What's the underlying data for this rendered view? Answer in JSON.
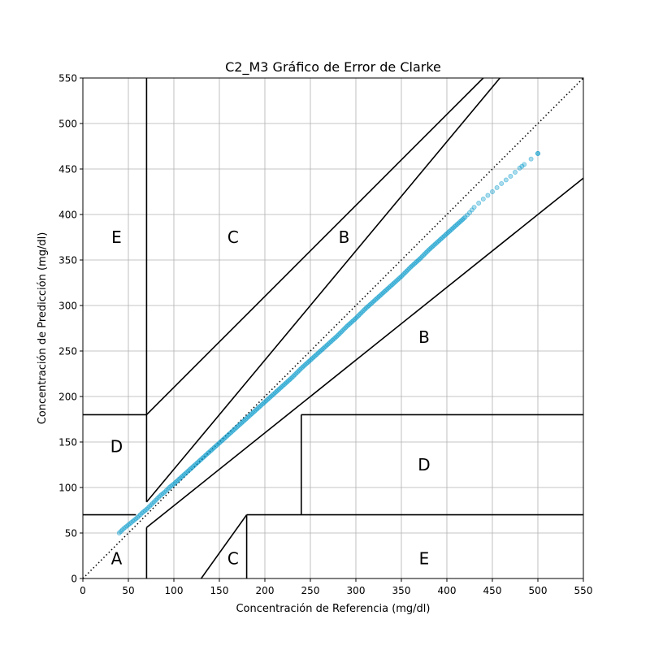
{
  "chart_data": {
    "type": "scatter",
    "title": "C2_M3 Gráfico de Error de Clarke",
    "xlabel": "Concentración de Referencia (mg/dl)",
    "ylabel": "Concentración de Predicción (mg/dl)",
    "xlim": [
      0,
      550
    ],
    "ylim": [
      0,
      550
    ],
    "xticks": [
      0,
      50,
      100,
      150,
      200,
      250,
      300,
      350,
      400,
      450,
      500,
      550
    ],
    "yticks": [
      0,
      50,
      100,
      150,
      200,
      250,
      300,
      350,
      400,
      450,
      500,
      550
    ],
    "grid": true,
    "point_color": "#0b9ccc",
    "reference_line": {
      "style": "dotted",
      "from": [
        0,
        0
      ],
      "to": [
        550,
        550
      ]
    },
    "zone_lines": [
      [
        [
          70,
          0
        ],
        [
          70,
          56
        ]
      ],
      [
        [
          70,
          56
        ],
        [
          550,
          440
        ]
      ],
      [
        [
          70,
          84
        ],
        [
          458.3,
          550
        ]
      ],
      [
        [
          70,
          84
        ],
        [
          70,
          550
        ]
      ],
      [
        [
          70,
          180
        ],
        [
          440,
          550
        ]
      ],
      [
        [
          0,
          70
        ],
        [
          58.3,
          70
        ]
      ],
      [
        [
          0,
          180
        ],
        [
          70,
          180
        ]
      ],
      [
        [
          130,
          0
        ],
        [
          180,
          70
        ]
      ],
      [
        [
          180,
          0
        ],
        [
          180,
          70
        ]
      ],
      [
        [
          180,
          70
        ],
        [
          550,
          70
        ]
      ],
      [
        [
          240,
          70
        ],
        [
          240,
          180
        ]
      ],
      [
        [
          240,
          180
        ],
        [
          550,
          180
        ]
      ]
    ],
    "zone_labels": [
      {
        "text": "A",
        "x": 37,
        "y": 22
      },
      {
        "text": "B",
        "x": 375,
        "y": 265
      },
      {
        "text": "B",
        "x": 287,
        "y": 375
      },
      {
        "text": "C",
        "x": 165,
        "y": 375
      },
      {
        "text": "C",
        "x": 165,
        "y": 22
      },
      {
        "text": "D",
        "x": 37,
        "y": 145
      },
      {
        "text": "D",
        "x": 375,
        "y": 125
      },
      {
        "text": "E",
        "x": 37,
        "y": 375
      },
      {
        "text": "E",
        "x": 375,
        "y": 22
      }
    ],
    "series": [
      {
        "x": [
          40,
          45,
          50,
          55,
          60,
          65,
          70,
          75,
          80,
          85,
          90,
          95,
          100,
          110,
          120,
          130,
          140,
          150,
          160,
          170,
          180,
          190,
          200,
          210,
          220,
          230,
          240,
          250,
          260,
          270,
          280,
          290,
          300,
          310,
          320,
          330,
          340,
          350,
          360,
          370,
          380,
          390,
          400,
          410,
          420,
          425,
          430,
          440,
          450,
          460,
          470,
          480,
          485,
          500
        ],
        "y": [
          50,
          55,
          59,
          63,
          67,
          72,
          76,
          81,
          86,
          91,
          95,
          100,
          104,
          113,
          122,
          131,
          140,
          149,
          158,
          167,
          176,
          185,
          194,
          203,
          212,
          221,
          231,
          240,
          249,
          258,
          267,
          277,
          286,
          296,
          305,
          314,
          323,
          332,
          342,
          351,
          361,
          370,
          379,
          388,
          397,
          402,
          408,
          417,
          425,
          434,
          442,
          451,
          455,
          467
        ]
      }
    ]
  }
}
